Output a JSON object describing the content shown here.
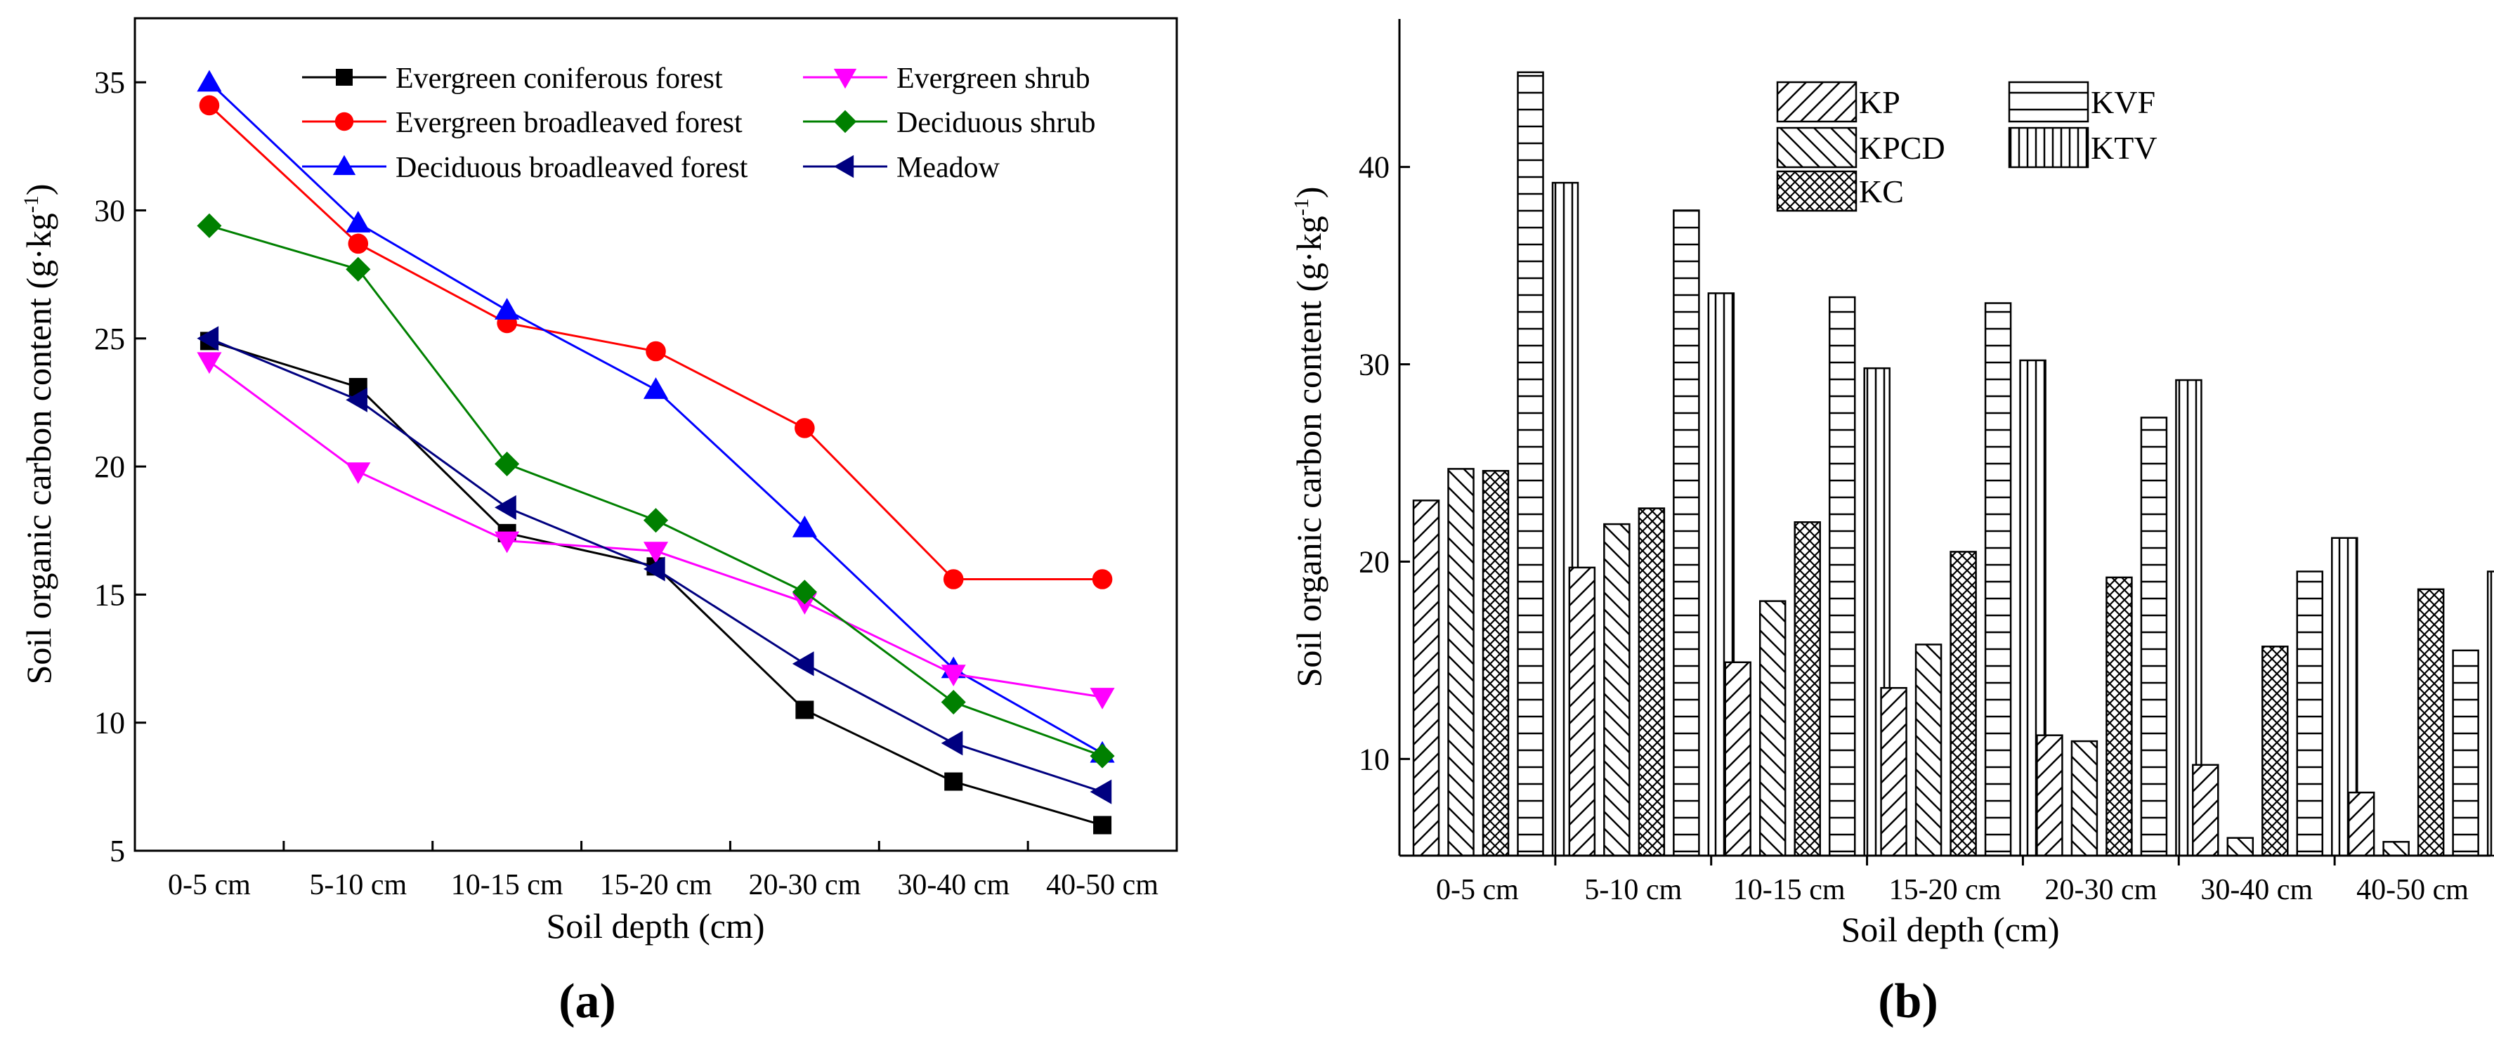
{
  "chart_data": [
    {
      "type": "line",
      "panel_label": "(a)",
      "xlabel": "Soil depth (cm)",
      "ylabel_main": "Soil organic carbon content (g·kg",
      "ylabel_sup": "-1",
      "ylabel_end": ")",
      "categories": [
        "0-5 cm",
        "5-10 cm",
        "10-15 cm",
        "15-20 cm",
        "20-30 cm",
        "30-40 cm",
        "40-50 cm"
      ],
      "yticks": [
        5,
        10,
        15,
        20,
        25,
        30,
        35
      ],
      "ylim": [
        5,
        37.5
      ],
      "legend_position": "top",
      "series": [
        {
          "name": "Evergreen coniferous forest",
          "color": "#000000",
          "marker": "square",
          "values": [
            24.9,
            23.1,
            17.4,
            16.1,
            10.5,
            7.7,
            6.0
          ]
        },
        {
          "name": "Evergreen broadleaved forest",
          "color": "#ff0000",
          "marker": "circle",
          "values": [
            34.1,
            28.7,
            25.6,
            24.5,
            21.5,
            15.6,
            15.6
          ]
        },
        {
          "name": "Deciduous  broadleaved forest",
          "color": "#0000ff",
          "marker": "triangle-up",
          "values": [
            35.0,
            29.5,
            26.1,
            23.0,
            17.6,
            12.1,
            8.8
          ]
        },
        {
          "name": "Evergreen shrub",
          "color": "#ff00ff",
          "marker": "triangle-down",
          "values": [
            24.1,
            19.8,
            17.1,
            16.7,
            14.7,
            11.9,
            11.0
          ]
        },
        {
          "name": "Deciduous shrub",
          "color": "#008000",
          "marker": "diamond",
          "values": [
            29.4,
            27.7,
            20.1,
            17.9,
            15.1,
            10.8,
            8.7
          ]
        },
        {
          "name": "Meadow",
          "color": "#000080",
          "marker": "triangle-left",
          "values": [
            25.0,
            22.6,
            18.4,
            16.0,
            12.3,
            9.2,
            7.3
          ]
        }
      ]
    },
    {
      "type": "bar",
      "panel_label": "(b)",
      "xlabel": "Soil depth (cm)",
      "ylabel_main": "Soil organic carbon content (g·kg",
      "ylabel_sup": "-1",
      "ylabel_end": ")",
      "categories": [
        "0-5 cm",
        "5-10 cm",
        "10-15 cm",
        "15-20 cm",
        "20-30 cm",
        "30-40 cm",
        "40-50 cm"
      ],
      "yticks": [
        10,
        20,
        30,
        40
      ],
      "ylim": [
        5.1,
        47.5
      ],
      "legend_position": "top",
      "series": [
        {
          "name": "KP",
          "pattern": "diag-up",
          "values": [
            23.1,
            19.7,
            14.9,
            13.6,
            11.2,
            9.7,
            8.3
          ]
        },
        {
          "name": "KPCD",
          "pattern": "diag-down",
          "values": [
            24.7,
            21.9,
            18.0,
            15.8,
            10.9,
            6.0,
            5.8
          ]
        },
        {
          "name": "KC",
          "pattern": "cross",
          "values": [
            24.6,
            22.7,
            22.0,
            20.5,
            19.2,
            15.7,
            18.6
          ]
        },
        {
          "name": "KVF",
          "pattern": "horizontal",
          "values": [
            44.8,
            37.8,
            33.4,
            33.1,
            27.3,
            19.5,
            15.5
          ]
        },
        {
          "name": "KTV",
          "pattern": "vertical",
          "values": [
            39.2,
            33.6,
            29.8,
            30.2,
            29.2,
            21.2,
            19.5
          ]
        }
      ]
    }
  ]
}
